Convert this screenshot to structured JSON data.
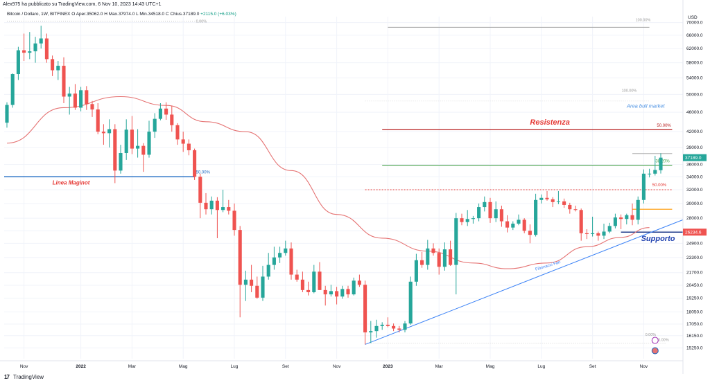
{
  "header": {
    "publisher": "Alex975 ha pubblicato su TradingView.com, 6 Nov 10, 2023 14:43 UTC+1"
  },
  "legend": {
    "symbol": "Bitcoin / Dollaro, 1W, BITFINEX",
    "open_label": "O",
    "open": "Aper.35062.0",
    "high_label": "H",
    "high": "Max.37974.0",
    "low_label": "L",
    "low": "Min.34518.0",
    "close_label": "C",
    "close": "Chius.37189.0",
    "change": "+2115.0 (+6.03%)"
  },
  "footer": {
    "brand_logo": "17",
    "brand": "TradingView"
  },
  "colors": {
    "up": "#26a69a",
    "down": "#ef5350",
    "ma": "#e57373",
    "resist": "#b71c1c",
    "support": "#1e3a8a",
    "maginot": "#1565c0",
    "fib_green": "#43a047",
    "fib_orange": "#ff9800",
    "fib_red": "#e53935",
    "fan": "#3b82f6",
    "grid": "#f0f3fa"
  },
  "chart_data": {
    "type": "candlestick",
    "symbol": "Bitcoin / Dollaro",
    "timeframe": "1W",
    "exchange": "BITFINEX",
    "currency_label": "USD",
    "ylim": [
      14500,
      72000
    ],
    "y_ticks": [
      "15250.0",
      "16150.0",
      "17050.0",
      "18050.0",
      "19250.0",
      "20450.0",
      "21700.0",
      "23300.0",
      "24900.0",
      "26400.0",
      "28000.0",
      "30000.0",
      "32000.0",
      "34000.0",
      "36000.0",
      "39000.0",
      "42000.0",
      "46000.0",
      "50000.0",
      "54000.0",
      "58000.0",
      "62000.0",
      "66000.0",
      "70000.0"
    ],
    "x_ticks": [
      {
        "label": "Nov",
        "index": 3
      },
      {
        "label": "2022",
        "index": 13
      },
      {
        "label": "Mar",
        "index": 22
      },
      {
        "label": "Mag",
        "index": 31
      },
      {
        "label": "Lug",
        "index": 40
      },
      {
        "label": "Set",
        "index": 49
      },
      {
        "label": "Nov",
        "index": 58
      },
      {
        "label": "2023",
        "index": 67
      },
      {
        "label": "Mar",
        "index": 76
      },
      {
        "label": "Mag",
        "index": 85
      },
      {
        "label": "Lug",
        "index": 94
      },
      {
        "label": "Set",
        "index": 103
      },
      {
        "label": "Nov",
        "index": 112
      }
    ],
    "candles": [
      [
        43800,
        48200,
        42800,
        47600
      ],
      [
        47600,
        55200,
        47000,
        55000
      ],
      [
        55000,
        62500,
        53500,
        61500
      ],
      [
        61500,
        66500,
        58500,
        60800
      ],
      [
        60800,
        67000,
        59000,
        61200
      ],
      [
        61200,
        65500,
        58000,
        63500
      ],
      [
        63500,
        69000,
        62000,
        65000
      ],
      [
        65000,
        66500,
        58000,
        59000
      ],
      [
        59000,
        60000,
        54500,
        56000
      ],
      [
        56000,
        58500,
        53500,
        57200
      ],
      [
        57200,
        59500,
        48000,
        49500
      ],
      [
        49500,
        51800,
        45500,
        50200
      ],
      [
        50200,
        52500,
        46500,
        47000
      ],
      [
        47000,
        51800,
        46200,
        51000
      ],
      [
        51000,
        52000,
        46500,
        47800
      ],
      [
        47800,
        48500,
        45000,
        46600
      ],
      [
        46600,
        48000,
        41500,
        42000
      ],
      [
        42000,
        43500,
        39500,
        41700
      ],
      [
        41700,
        44500,
        39000,
        42500
      ],
      [
        42500,
        43500,
        33000,
        35000
      ],
      [
        35000,
        39500,
        34500,
        38000
      ],
      [
        38000,
        44500,
        36800,
        42400
      ],
      [
        42400,
        45200,
        37800,
        38800
      ],
      [
        38800,
        42500,
        37200,
        39300
      ],
      [
        39300,
        39800,
        34800,
        37700
      ],
      [
        37700,
        44200,
        37200,
        42000
      ],
      [
        42000,
        45800,
        40800,
        44600
      ],
      [
        44600,
        48000,
        44300,
        46800
      ],
      [
        46800,
        48200,
        44400,
        45500
      ],
      [
        45500,
        47400,
        42000,
        43300
      ],
      [
        43300,
        43700,
        39500,
        40500
      ],
      [
        40500,
        42000,
        38200,
        39700
      ],
      [
        39700,
        40500,
        37600,
        38500
      ],
      [
        38500,
        38800,
        33500,
        34000
      ],
      [
        34000,
        34500,
        28000,
        30100
      ],
      [
        30100,
        31500,
        28500,
        29200
      ],
      [
        29200,
        31000,
        28500,
        30400
      ],
      [
        30400,
        30900,
        25500,
        29100
      ],
      [
        29100,
        32000,
        28800,
        29500
      ],
      [
        29500,
        30500,
        28500,
        29000
      ],
      [
        29000,
        30000,
        25800,
        26500
      ],
      [
        26500,
        27000,
        17600,
        20500
      ],
      [
        20500,
        21900,
        19000,
        21000
      ],
      [
        21000,
        22500,
        19800,
        20400
      ],
      [
        20400,
        21300,
        19200,
        19300
      ],
      [
        19300,
        22400,
        19000,
        21300
      ],
      [
        21300,
        23800,
        21000,
        22500
      ],
      [
        22500,
        24500,
        22000,
        23300
      ],
      [
        23300,
        24500,
        22700,
        23800
      ],
      [
        23800,
        25200,
        23500,
        24300
      ],
      [
        24300,
        25000,
        21000,
        21500
      ],
      [
        21500,
        22000,
        20800,
        21000
      ],
      [
        21000,
        21800,
        19800,
        20000
      ],
      [
        20000,
        20800,
        19500,
        19800
      ],
      [
        19800,
        22500,
        19700,
        21800
      ],
      [
        21800,
        22800,
        20000,
        20000
      ],
      [
        20000,
        20400,
        18600,
        19600
      ],
      [
        19600,
        20500,
        19400,
        19900
      ],
      [
        19900,
        20300,
        18700,
        19400
      ],
      [
        19400,
        20400,
        19200,
        20100
      ],
      [
        20100,
        20400,
        19300,
        19600
      ],
      [
        19600,
        21200,
        19500,
        20900
      ],
      [
        20900,
        21500,
        20300,
        20500
      ],
      [
        20500,
        20900,
        15500,
        16400
      ],
      [
        16400,
        17300,
        15600,
        16500
      ],
      [
        16500,
        17400,
        16000,
        16900
      ],
      [
        16900,
        17200,
        16600,
        17000
      ],
      [
        17000,
        17600,
        16800,
        16900
      ],
      [
        16900,
        17100,
        16500,
        16700
      ],
      [
        16700,
        16900,
        16400,
        16600
      ],
      [
        16600,
        17300,
        16400,
        17100
      ],
      [
        17100,
        21300,
        17000,
        20800
      ],
      [
        20800,
        23700,
        20400,
        23000
      ],
      [
        23000,
        23900,
        22200,
        22500
      ],
      [
        22500,
        25300,
        22000,
        24300
      ],
      [
        24300,
        24900,
        23500,
        23800
      ],
      [
        23800,
        24300,
        21500,
        22300
      ],
      [
        22300,
        25000,
        21900,
        24200
      ],
      [
        24200,
        25200,
        22400,
        22500
      ],
      [
        22500,
        28700,
        19600,
        28000
      ],
      [
        28000,
        28600,
        27100,
        27500
      ],
      [
        27500,
        29100,
        27000,
        27900
      ],
      [
        27900,
        28300,
        27300,
        28000
      ],
      [
        28000,
        30000,
        27600,
        29500
      ],
      [
        29500,
        31000,
        28900,
        30200
      ],
      [
        30200,
        30800,
        27400,
        28000
      ],
      [
        28000,
        30300,
        27500,
        29200
      ],
      [
        29200,
        29700,
        26900,
        27600
      ],
      [
        27600,
        28400,
        26200,
        26800
      ],
      [
        26800,
        27600,
        26500,
        27300
      ],
      [
        27300,
        28500,
        27100,
        27800
      ],
      [
        27800,
        28000,
        26100,
        26400
      ],
      [
        26400,
        27200,
        24900,
        25900
      ],
      [
        25900,
        31400,
        25700,
        30500
      ],
      [
        30500,
        31300,
        30000,
        30800
      ],
      [
        30800,
        31800,
        30400,
        30600
      ],
      [
        30600,
        30900,
        29500,
        30200
      ],
      [
        30200,
        31800,
        29900,
        30300
      ],
      [
        30300,
        30700,
        29400,
        29800
      ],
      [
        29800,
        30100,
        28600,
        29200
      ],
      [
        29200,
        29700,
        28900,
        29100
      ],
      [
        29100,
        29300,
        25200,
        26100
      ],
      [
        26100,
        26600,
        25400,
        26000
      ],
      [
        26000,
        28200,
        25700,
        26100
      ],
      [
        26100,
        26300,
        25200,
        25800
      ],
      [
        25800,
        27300,
        25400,
        26300
      ],
      [
        26300,
        27400,
        26100,
        27000
      ],
      [
        27000,
        28600,
        26700,
        28100
      ],
      [
        28100,
        28500,
        26600,
        27900
      ],
      [
        27900,
        28600,
        27200,
        28400
      ],
      [
        28400,
        30000,
        27100,
        27800
      ],
      [
        27800,
        31000,
        27200,
        30500
      ],
      [
        30500,
        35200,
        30000,
        34500
      ],
      [
        34500,
        35300,
        33900,
        34500
      ],
      [
        34500,
        37500,
        34200,
        35100
      ],
      [
        35062,
        37974,
        34518,
        37189
      ]
    ],
    "moving_average_points": [
      [
        0,
        39800
      ],
      [
        10,
        47000
      ],
      [
        20,
        49500
      ],
      [
        28,
        47500
      ],
      [
        35,
        44000
      ],
      [
        42,
        42000
      ],
      [
        50,
        35000
      ],
      [
        58,
        28500
      ],
      [
        66,
        25500
      ],
      [
        74,
        24000
      ],
      [
        82,
        22700
      ],
      [
        88,
        22100
      ],
      [
        95,
        22700
      ],
      [
        102,
        24500
      ],
      [
        108,
        25600
      ],
      [
        113,
        26800
      ]
    ],
    "current_price": "37189.0",
    "support_price_label": "26234.6",
    "annotations": {
      "resistance": "Resistenza",
      "support": "Supporto",
      "maginot": "Linea Maginot",
      "bull_area": "Area bull market",
      "fan": "Fibonacci Fan"
    },
    "levels": {
      "resistance": 42400,
      "support": 26234.6,
      "maginot": 34000,
      "fib_38": 35900,
      "fib_50_red": 32000,
      "orange": 29200
    },
    "fib_labels": {
      "top_left": "0.00%",
      "maginot_pct": "50.00%",
      "top_right": "100.00%",
      "right_100": "100.00%",
      "resist_pct": "50.00%",
      "green_pct": "38.20%",
      "red_pct": "50.00%",
      "bottom_pct": "0.00%",
      "bottom_pct2": "0.00%"
    }
  }
}
